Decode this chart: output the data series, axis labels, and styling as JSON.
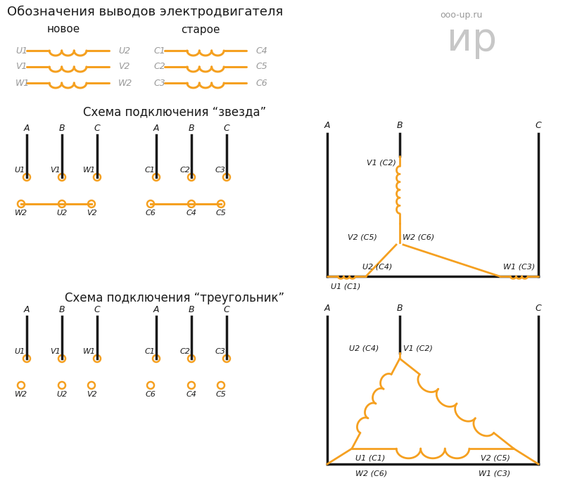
{
  "title": "Обозначения выводов электродвигателя",
  "subtitle_new": "новое",
  "subtitle_old": "старое",
  "star_title": "Схема подключения “звезда”",
  "triangle_title": "Схема подключения “треугольник”",
  "watermark1": "ooo-up.ru",
  "watermark2": "ир",
  "orange": "#F5A020",
  "black": "#1a1a1a",
  "gray": "#999999",
  "bg": "#FFFFFF",
  "fig_w": 8.0,
  "fig_h": 7.04,
  "dpi": 100,
  "coil_legend_new": [
    [
      "U1",
      "U2"
    ],
    [
      "V1",
      "V2"
    ],
    [
      "W1",
      "W2"
    ]
  ],
  "coil_legend_old": [
    [
      "C1",
      "C4"
    ],
    [
      "C2",
      "C5"
    ],
    [
      "C3",
      "C6"
    ]
  ],
  "star_new_top": [
    "A",
    "B",
    "C"
  ],
  "star_new_mid": [
    "U1",
    "V1",
    "W1"
  ],
  "star_new_bot": [
    "W2",
    "U2",
    "V2"
  ],
  "star_old_top": [
    "A",
    "B",
    "C"
  ],
  "star_old_mid": [
    "C1",
    "C2",
    "C3"
  ],
  "star_old_bot": [
    "C6",
    "C4",
    "C5"
  ],
  "tri_new_top": [
    "A",
    "B",
    "C"
  ],
  "tri_new_mid": [
    "U1",
    "V1",
    "W1"
  ],
  "tri_new_bot": [
    "W2",
    "U2",
    "V2"
  ],
  "tri_old_top": [
    "A",
    "B",
    "C"
  ],
  "tri_old_mid": [
    "C1",
    "C2",
    "C3"
  ],
  "tri_old_bot": [
    "C6",
    "C4",
    "C5"
  ]
}
